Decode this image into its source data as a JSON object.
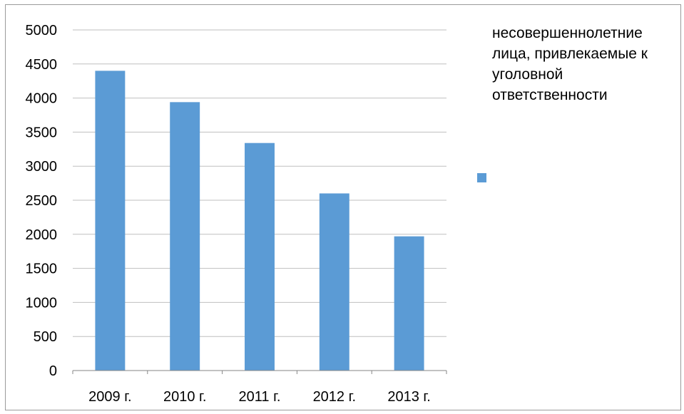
{
  "chart_data": {
    "type": "bar",
    "categories": [
      "2009 г.",
      "2010 г.",
      "2011 г.",
      "2012 г.",
      "2013 г."
    ],
    "series": [
      {
        "name": "несовершеннолетние лица, привлекаемые к уголовной ответственности",
        "values": [
          4400,
          3940,
          3340,
          2600,
          1970
        ]
      }
    ],
    "ylim": [
      0,
      5000
    ],
    "yticks": [
      0,
      500,
      1000,
      1500,
      2000,
      2500,
      3000,
      3500,
      4000,
      4500,
      5000
    ],
    "grid": true,
    "legend": "right",
    "colors": {
      "bar": "#5b9bd5",
      "grid": "#bfbfbf",
      "axis": "#868686"
    }
  }
}
